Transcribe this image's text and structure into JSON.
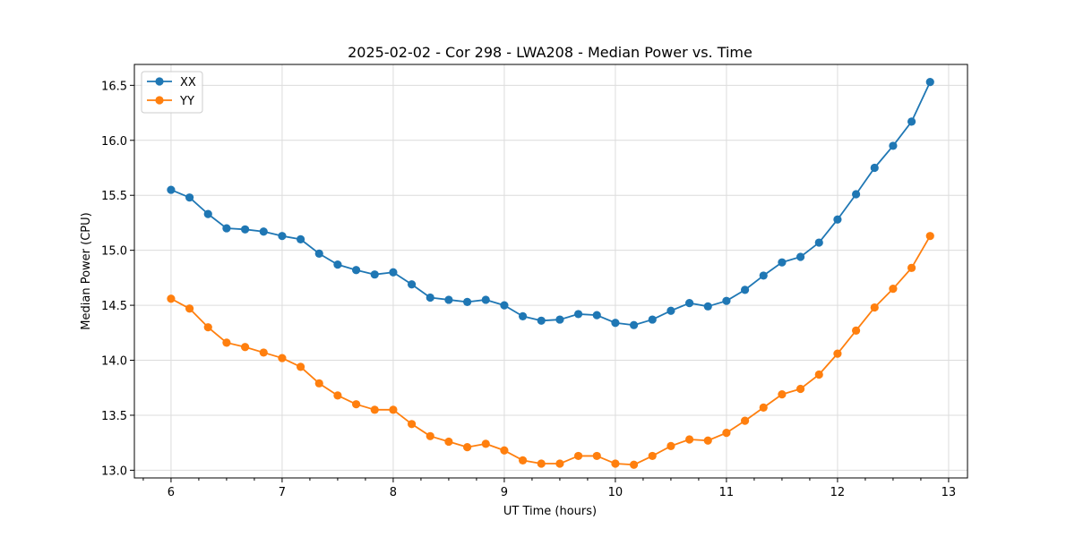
{
  "chart_data": {
    "type": "line",
    "title": "2025-02-02 - Cor 298 - LWA208 - Median Power vs. Time",
    "xlabel": "UT Time (hours)",
    "ylabel": "Median Power (CPU)",
    "xlim": [
      5.67,
      13.17
    ],
    "ylim": [
      12.93,
      16.69
    ],
    "xticks": [
      6,
      7,
      8,
      9,
      10,
      11,
      12,
      13
    ],
    "yticks": [
      13.0,
      13.5,
      14.0,
      14.5,
      15.0,
      15.5,
      16.0,
      16.5
    ],
    "ytick_labels": [
      "13.0",
      "13.5",
      "14.0",
      "14.5",
      "15.0",
      "15.5",
      "16.0",
      "16.5"
    ],
    "minor_xtick_step": 0.25,
    "grid": true,
    "legend_position": "top-left",
    "x": [
      6.0,
      6.1667,
      6.3333,
      6.5,
      6.6667,
      6.8333,
      7.0,
      7.1667,
      7.3333,
      7.5,
      7.6667,
      7.8333,
      8.0,
      8.1667,
      8.3333,
      8.5,
      8.6667,
      8.8333,
      9.0,
      9.1667,
      9.3333,
      9.5,
      9.6667,
      9.8333,
      10.0,
      10.1667,
      10.3333,
      10.5,
      10.6667,
      10.8333,
      11.0,
      11.1667,
      11.3333,
      11.5,
      11.6667,
      11.8333,
      12.0,
      12.1667,
      12.3333,
      12.5,
      12.6667,
      12.8333
    ],
    "series": [
      {
        "name": "XX",
        "color": "#1f77b4",
        "values": [
          15.55,
          15.48,
          15.33,
          15.2,
          15.19,
          15.17,
          15.13,
          15.1,
          14.97,
          14.87,
          14.82,
          14.78,
          14.8,
          14.69,
          14.57,
          14.55,
          14.53,
          14.55,
          14.5,
          14.4,
          14.36,
          14.37,
          14.42,
          14.41,
          14.34,
          14.32,
          14.37,
          14.45,
          14.52,
          14.49,
          14.54,
          14.64,
          14.77,
          14.89,
          14.94,
          15.07,
          15.28,
          15.51,
          15.75,
          15.95,
          16.17,
          16.53
        ]
      },
      {
        "name": "YY",
        "color": "#ff7f0e",
        "values": [
          14.56,
          14.47,
          14.3,
          14.16,
          14.12,
          14.07,
          14.02,
          13.94,
          13.79,
          13.68,
          13.6,
          13.55,
          13.55,
          13.42,
          13.31,
          13.26,
          13.21,
          13.24,
          13.18,
          13.09,
          13.06,
          13.06,
          13.13,
          13.13,
          13.06,
          13.05,
          13.13,
          13.22,
          13.28,
          13.27,
          13.34,
          13.45,
          13.57,
          13.69,
          13.74,
          13.87,
          14.06,
          14.27,
          14.48,
          14.65,
          14.84,
          15.13
        ]
      }
    ]
  }
}
